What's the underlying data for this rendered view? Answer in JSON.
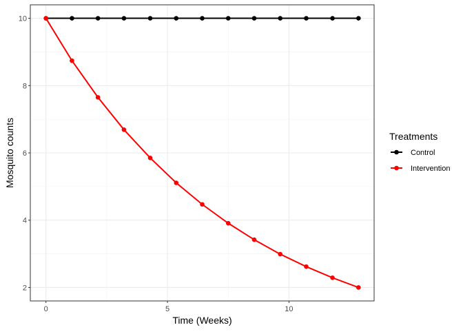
{
  "chart_data": {
    "type": "line",
    "xlabel": "Time (Weeks)",
    "ylabel": "Mosquito counts",
    "xlim": [
      0,
      12.86
    ],
    "ylim": [
      2,
      10
    ],
    "xticks": [
      0,
      5,
      10
    ],
    "yticks": [
      2,
      4,
      6,
      8,
      10
    ],
    "grid": true,
    "legend_title": "Treatments",
    "legend_position": "right",
    "x": [
      0,
      1.07,
      2.14,
      3.21,
      4.29,
      5.36,
      6.43,
      7.5,
      8.57,
      9.64,
      10.71,
      11.79,
      12.86
    ],
    "series": [
      {
        "name": "Control",
        "color": "#000000",
        "values": [
          10,
          10,
          10,
          10,
          10,
          10,
          10,
          10,
          10,
          10,
          10,
          10,
          10
        ]
      },
      {
        "name": "Intervention",
        "color": "#ff0000",
        "values": [
          10,
          8.74,
          7.65,
          6.69,
          5.85,
          5.11,
          4.47,
          3.91,
          3.42,
          2.99,
          2.62,
          2.29,
          2.0
        ]
      }
    ]
  }
}
